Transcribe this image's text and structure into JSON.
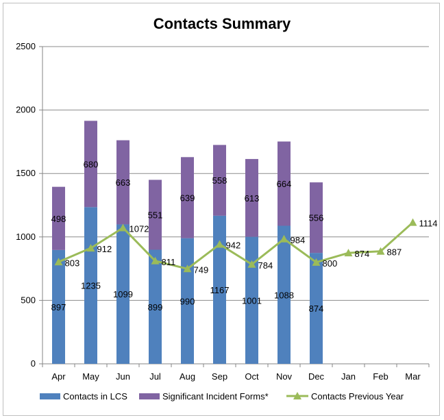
{
  "chart_data": {
    "type": "bar",
    "title": "Contacts Summary",
    "xlabel": "",
    "ylabel": "",
    "ylim": [
      0,
      2500
    ],
    "yticks": [
      0,
      500,
      1000,
      1500,
      2000,
      2500
    ],
    "grid": true,
    "legend_position": "bottom",
    "stacked": true,
    "categories": [
      "Apr",
      "May",
      "Jun",
      "Jul",
      "Aug",
      "Sep",
      "Oct",
      "Nov",
      "Dec",
      "Jan",
      "Feb",
      "Mar"
    ],
    "series": [
      {
        "name": "Contacts in LCS",
        "type": "bar",
        "color": "#4f81bd",
        "values": [
          897,
          1235,
          1099,
          899,
          990,
          1167,
          1001,
          1088,
          874,
          null,
          null,
          null
        ]
      },
      {
        "name": "Significant Incident Forms*",
        "type": "bar",
        "color": "#8064a2",
        "values": [
          498,
          680,
          663,
          551,
          639,
          558,
          613,
          664,
          556,
          null,
          null,
          null
        ]
      },
      {
        "name": "Contacts Previous Year",
        "type": "line",
        "marker": "triangle",
        "color": "#9bbb59",
        "values": [
          803,
          912,
          1072,
          811,
          749,
          942,
          784,
          984,
          800,
          874,
          887,
          1114
        ]
      }
    ]
  }
}
